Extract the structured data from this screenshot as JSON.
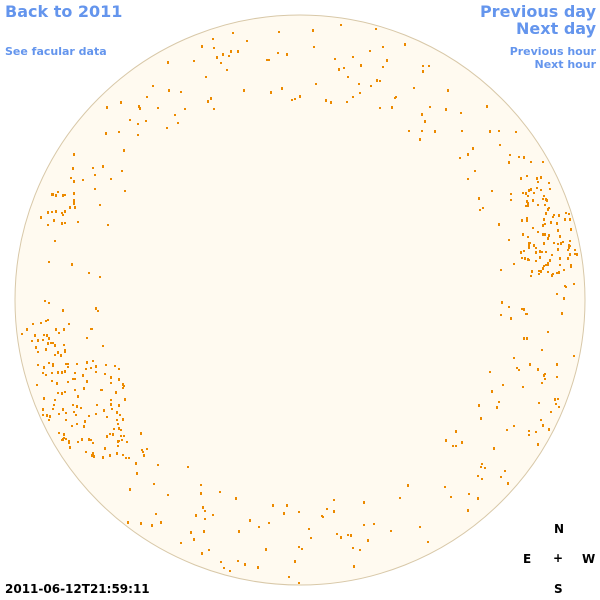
{
  "nav": {
    "back": "Back to 2011",
    "facular": "See facular data",
    "previous_day": "Previous day",
    "next_day": "Next day",
    "previous_hour": "Previous hour",
    "next_hour": "Next hour"
  },
  "compass": {
    "north": "N",
    "east": "E",
    "center": "+",
    "west": "W",
    "south": "S"
  },
  "timestamp": "2011-06-12T21:59:11"
}
